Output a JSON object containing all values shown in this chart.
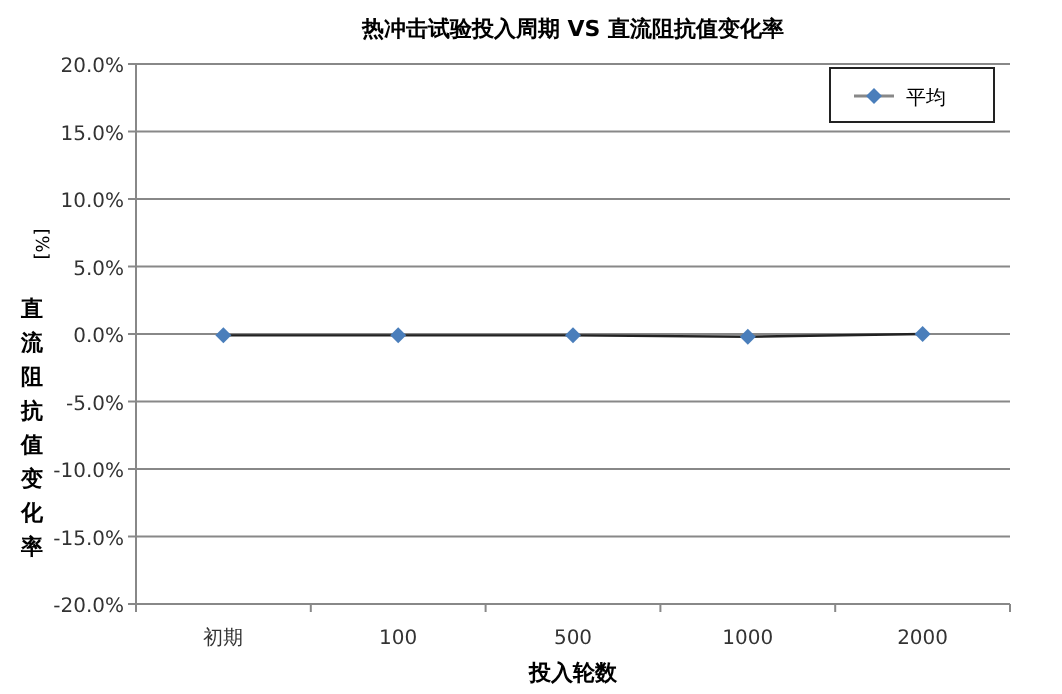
{
  "chart_data": {
    "type": "line",
    "title": "热冲击试验投入周期 VS 直流阻抗值变化率",
    "xlabel": "投入轮数",
    "ylabel": "直流阻抗值变化率",
    "annotations": [
      "[%]"
    ],
    "categories": [
      "初期",
      "100",
      "500",
      "1000",
      "2000"
    ],
    "series": [
      {
        "name": "平均",
        "color": "#4a7ebb",
        "values": [
          -0.1,
          -0.1,
          -0.1,
          -0.2,
          0.0
        ]
      }
    ],
    "ylim": [
      -20,
      20
    ],
    "yticks": [
      {
        "value": -20,
        "label": "-20.0%"
      },
      {
        "value": -15,
        "label": "-15.0%"
      },
      {
        "value": -10,
        "label": "-10.0%"
      },
      {
        "value": -5,
        "label": "-5.0%"
      },
      {
        "value": 0,
        "label": "0.0%"
      },
      {
        "value": 5,
        "label": "5.0%"
      },
      {
        "value": 10,
        "label": "10.0%"
      },
      {
        "value": 15,
        "label": "15.0%"
      },
      {
        "value": 20,
        "label": "20.0%"
      }
    ],
    "grid": "y",
    "legend": "top right",
    "marker": "diamond",
    "line_style": "solid"
  }
}
